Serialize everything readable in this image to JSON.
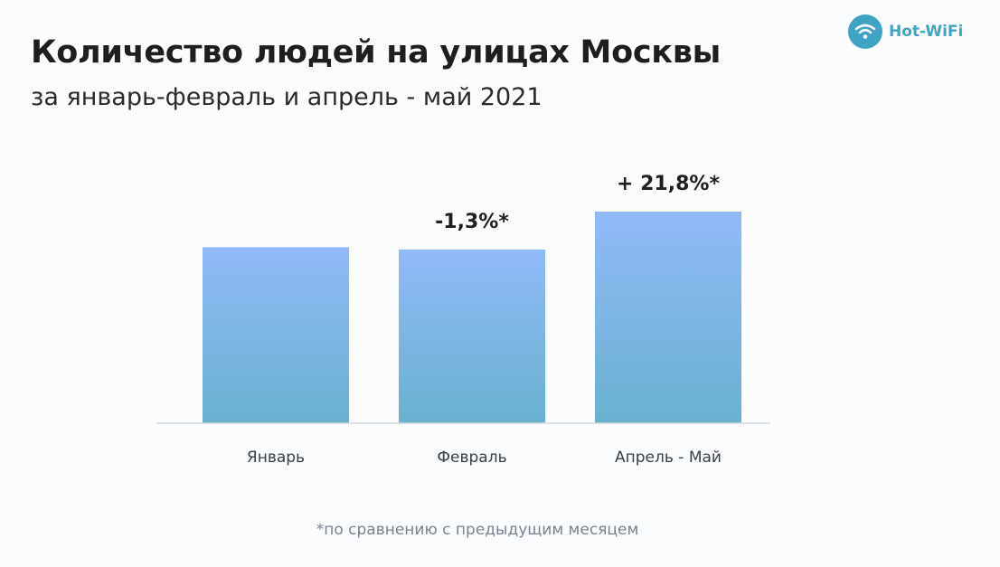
{
  "header": {
    "title": "Количество людей на улицах Москвы",
    "subtitle": "за январь-февраль и апрель - май 2021"
  },
  "logo": {
    "text": "Hot-WiFi",
    "icon": "wifi-icon",
    "color": "#3fa3c4"
  },
  "chart_data": {
    "type": "bar",
    "categories": [
      "Январь",
      "Февраль",
      "Апрель - Май"
    ],
    "values": [
      100,
      98.7,
      120.2
    ],
    "value_labels": [
      "",
      "-1,3%*",
      "+ 21,8%*"
    ],
    "ylim": [
      0,
      125
    ],
    "grid": false,
    "bar_gradient": [
      "#90baf8",
      "#69b1d0"
    ],
    "footnote": "*по сравнению с предыдущим месяцем"
  }
}
